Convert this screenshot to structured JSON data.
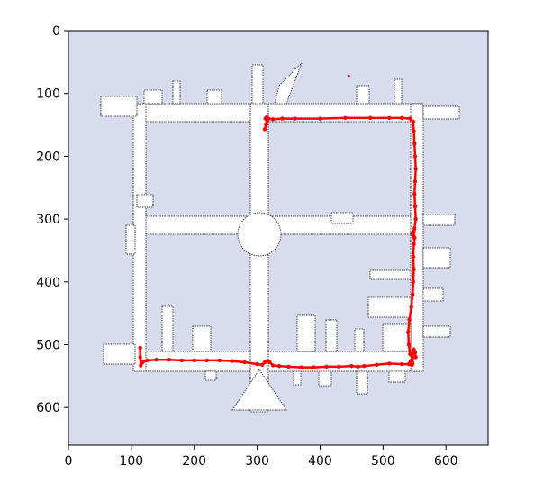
{
  "chart_data": {
    "type": "scatter",
    "title": "",
    "xlabel": "",
    "ylabel": "",
    "xlim": [
      0,
      667
    ],
    "ylim": [
      660,
      0
    ],
    "grid": false,
    "y_axis_inverted": true,
    "colors": {
      "map_background": "#d9dbef",
      "free_space": "#ffffff",
      "walls": "#4a4a4a",
      "trajectory": "#ff0000"
    },
    "x_ticks": [
      0,
      100,
      200,
      300,
      400,
      500,
      600
    ],
    "x_tick_labels": [
      "0",
      "100",
      "200",
      "300",
      "400",
      "500",
      "600"
    ],
    "y_ticks": [
      0,
      100,
      200,
      300,
      400,
      500,
      600
    ],
    "y_tick_labels": [
      "0",
      "100",
      "200",
      "300",
      "400",
      "500",
      "600"
    ],
    "series": [
      {
        "marker": "dot",
        "x": [
          312,
          314,
          316,
          313,
          315,
          318,
          325,
          340,
          360,
          400,
          440,
          480,
          510,
          530,
          543,
          548,
          549,
          550,
          551,
          552,
          551,
          550,
          551,
          552,
          550,
          549,
          548,
          547,
          548,
          549,
          550,
          549,
          548,
          549,
          548,
          547,
          545,
          542,
          540,
          541,
          543,
          547,
          552,
          551,
          549,
          548,
          547,
          546,
          545,
          546,
          547,
          546,
          545,
          544,
          545,
          544,
          543,
          542,
          541,
          530,
          510,
          490,
          470,
          460,
          450,
          430,
          410,
          390,
          370,
          350,
          335,
          325,
          320,
          316,
          312,
          308,
          300,
          280,
          260,
          240,
          220,
          200,
          180,
          160,
          140,
          125,
          118,
          115,
          114,
          114
        ],
        "y": [
          157,
          150,
          145,
          140,
          138,
          140,
          141,
          140,
          140,
          140,
          139,
          139,
          139,
          139,
          140,
          145,
          160,
          180,
          200,
          220,
          240,
          260,
          280,
          300,
          315,
          320,
          322,
          324,
          326,
          328,
          330,
          340,
          360,
          380,
          400,
          420,
          440,
          460,
          480,
          500,
          515,
          520,
          520,
          512,
          508,
          512,
          520,
          525,
          530,
          532,
          530,
          528,
          527,
          526,
          527,
          528,
          529,
          530,
          531,
          531,
          530,
          532,
          534,
          535,
          534,
          535,
          535,
          536,
          536,
          535,
          534,
          533,
          528,
          526,
          528,
          532,
          531,
          528,
          526,
          525,
          525,
          525,
          525,
          524,
          524,
          525,
          528,
          533,
          520,
          505
        ]
      },
      {
        "marker": "dot",
        "x": [
          446
        ],
        "y": [
          72
        ]
      }
    ]
  }
}
